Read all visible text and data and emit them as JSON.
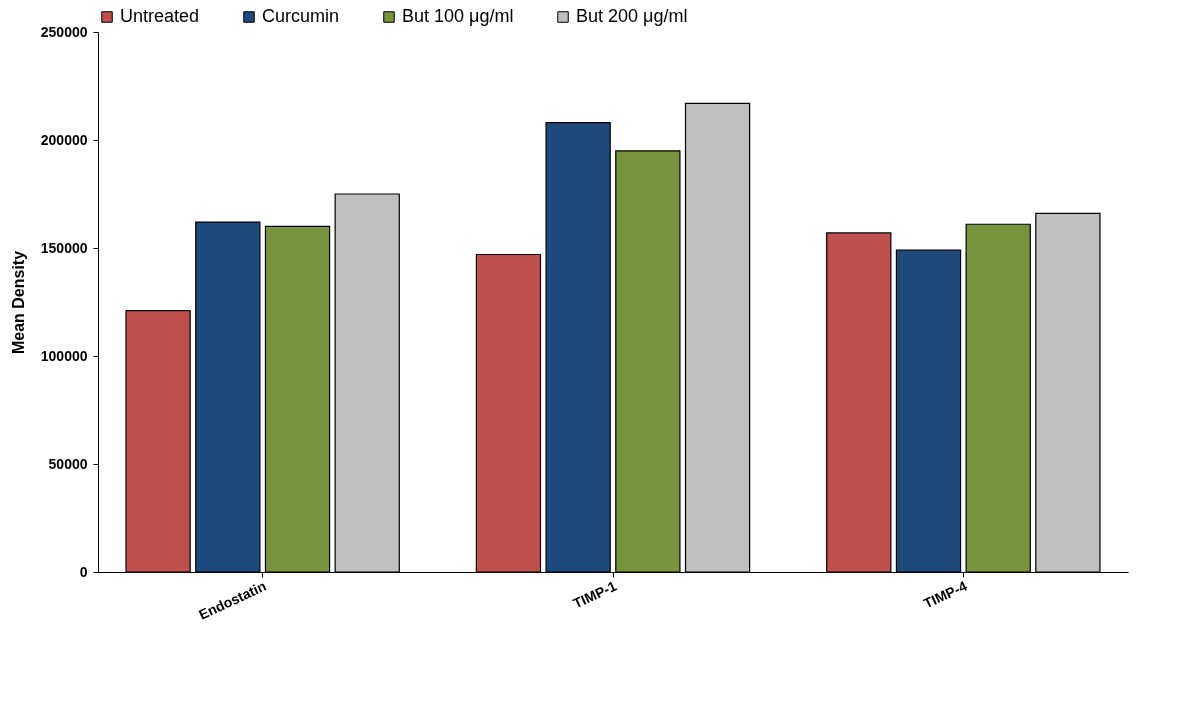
{
  "chart_data": {
    "type": "bar",
    "ylabel": "Mean Density",
    "categories": [
      "Endostatin",
      "TIMP-1",
      "TIMP-4"
    ],
    "series": [
      {
        "name": "Untreated",
        "color": "#c0504d",
        "values": [
          121000,
          147000,
          157000
        ]
      },
      {
        "name": "Curcumin",
        "color": "#1f497d",
        "values": [
          162000,
          208000,
          149000
        ]
      },
      {
        "name": "But 100 μg/ml",
        "color": "#77933c",
        "values": [
          160000,
          195000,
          161000
        ]
      },
      {
        "name": "But 200 μg/ml",
        "color": "#bfbfbf",
        "values": [
          175000,
          217000,
          166000
        ]
      }
    ],
    "ylim": [
      0,
      250000
    ],
    "yticks": [
      0,
      50000,
      100000,
      150000,
      200000,
      250000
    ],
    "grid": false,
    "legend": "top"
  }
}
